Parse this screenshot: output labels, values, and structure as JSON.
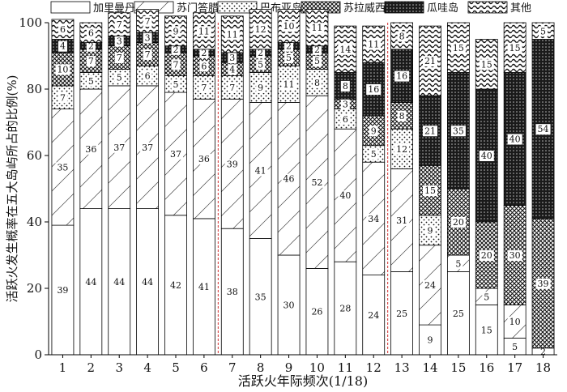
{
  "chart_data": {
    "type": "bar",
    "stacked": true,
    "title": "",
    "xlabel": "活跃火年际频次(1/18)",
    "ylabel": "活跃火发生概率在五大岛屿所占的比例(%)",
    "ylim": [
      0,
      100
    ],
    "yticks": [
      "0",
      "20",
      "40",
      "60",
      "80",
      "100"
    ],
    "categories": [
      "1",
      "2",
      "3",
      "4",
      "5",
      "6",
      "7",
      "8",
      "9",
      "10",
      "11",
      "12",
      "13",
      "14",
      "15",
      "16",
      "17",
      "18"
    ],
    "legend_position": "top",
    "grid": false,
    "reference_lines_after": [
      "6",
      "12"
    ],
    "series": [
      {
        "name": "加里曼丹岛",
        "pattern": "blank",
        "values": [
          39,
          44,
          44,
          44,
          42,
          41,
          38,
          35,
          30,
          26,
          28,
          24,
          25,
          9,
          25,
          15,
          5,
          2
        ],
        "labels": [
          "39",
          "44",
          "44",
          "44",
          "42",
          "41",
          "38",
          "35",
          "30",
          "26",
          "28",
          "24",
          "25",
          "9",
          "25",
          "15",
          "5",
          "2"
        ]
      },
      {
        "name": "苏门答腊岛",
        "pattern": "diagonal",
        "values": [
          35,
          36,
          37,
          37,
          37,
          36,
          39,
          41,
          46,
          52,
          40,
          34,
          31,
          24,
          5,
          5,
          10,
          0
        ],
        "labels": [
          "35",
          "36",
          "37",
          "37",
          "37",
          "36",
          "39",
          "41",
          "46",
          "52",
          "40",
          "34",
          "31",
          "24",
          "5",
          "5",
          "10",
          ""
        ]
      },
      {
        "name": "巴布亚岛",
        "pattern": "dots",
        "values": [
          7,
          5,
          5,
          6,
          5,
          7,
          7,
          9,
          11,
          8,
          6,
          5,
          12,
          9,
          0,
          0,
          0,
          0
        ],
        "labels": [
          "7",
          "5",
          "5",
          "6",
          "5",
          "7",
          "7",
          "9",
          "11",
          "8",
          "6",
          "5",
          "12",
          "9",
          "",
          "",
          "",
          ""
        ]
      },
      {
        "name": "苏拉威西岛",
        "pattern": "crosshatch",
        "values": [
          10,
          7,
          7,
          7,
          7,
          6,
          4,
          5,
          5,
          5,
          3,
          9,
          8,
          15,
          20,
          20,
          30,
          39
        ],
        "labels": [
          "10",
          "7",
          "7",
          "7",
          "7",
          "6",
          "4",
          "5",
          "5",
          "5",
          "3",
          "9",
          "8",
          "15",
          "20",
          "20",
          "30",
          "39"
        ]
      },
      {
        "name": "瓜哇岛",
        "pattern": "dense",
        "values": [
          4,
          2,
          3,
          3,
          2,
          2,
          3,
          2,
          2,
          2,
          8,
          16,
          16,
          21,
          35,
          40,
          40,
          54
        ],
        "labels": [
          "4",
          "2",
          "3",
          "3",
          "2",
          "2",
          "3",
          "2",
          "2",
          "2",
          "8",
          "16",
          "16",
          "21",
          "35",
          "40",
          "40",
          "54"
        ]
      },
      {
        "name": "其他",
        "pattern": "wavy",
        "values": [
          6,
          6,
          7,
          7,
          9,
          11,
          11,
          12,
          10,
          11,
          14,
          11,
          8,
          21,
          15,
          15,
          15,
          5
        ],
        "labels": [
          "6",
          "6",
          "7",
          "7",
          "9",
          "11",
          "11",
          "12",
          "10",
          "11",
          "14",
          "11",
          "8",
          "21",
          "15",
          "15",
          "15",
          "5"
        ]
      }
    ]
  }
}
